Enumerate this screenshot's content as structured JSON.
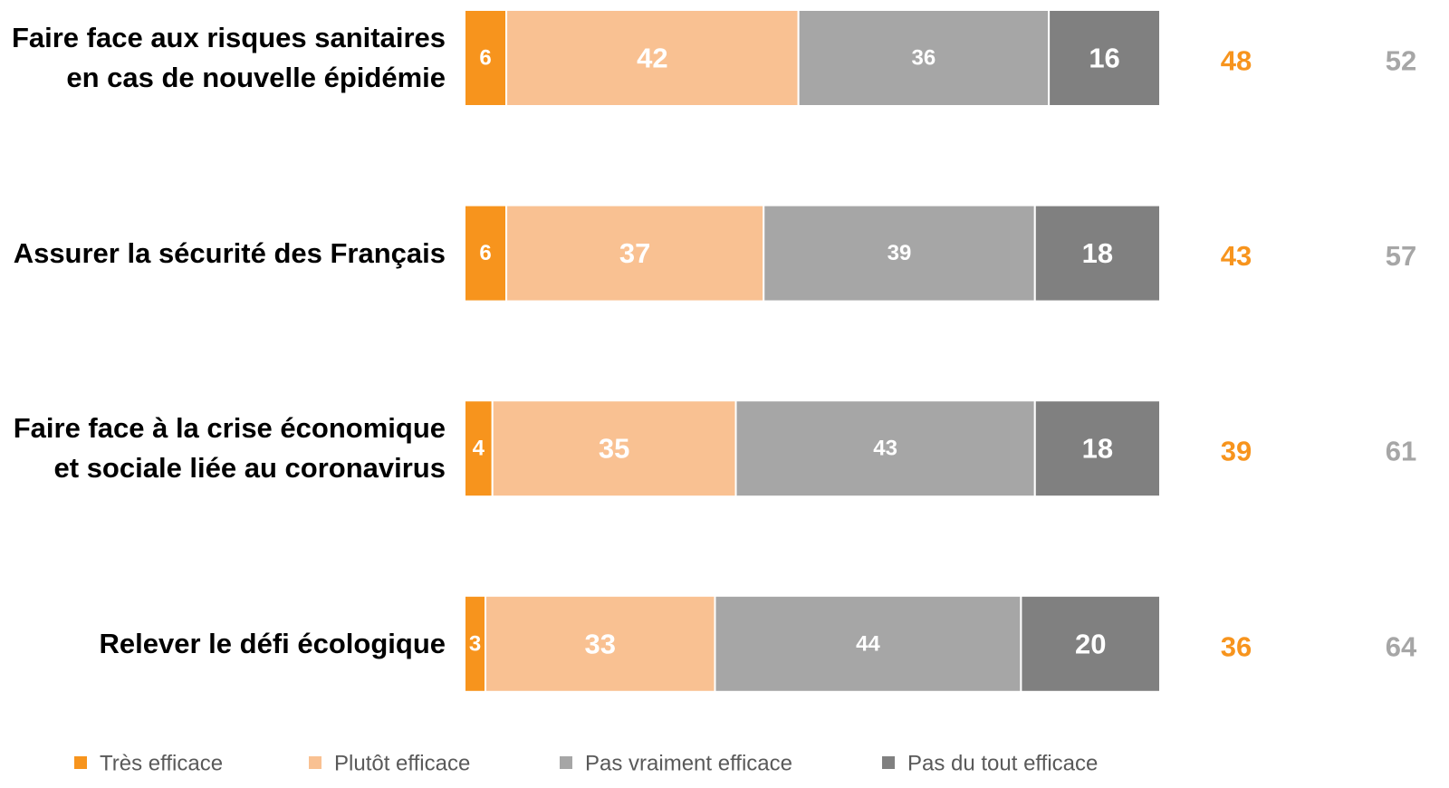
{
  "chart_data": {
    "type": "stacked_bar_horizontal",
    "categories": [
      "Faire face aux risques sanitaires\nen cas de nouvelle épidémie",
      "Assurer la sécurité des Français",
      "Faire face à la crise économique\net sociale liée au coronavirus",
      "Relever le défi écologique"
    ],
    "series": [
      {
        "name": "Très efficace",
        "color": "#f7941d",
        "values": [
          6,
          6,
          4,
          3
        ]
      },
      {
        "name": "Plutôt efficace",
        "color": "#f9c192",
        "values": [
          42,
          37,
          35,
          33
        ]
      },
      {
        "name": "Pas vraiment efficace",
        "color": "#a6a6a6",
        "values": [
          36,
          39,
          43,
          44
        ]
      },
      {
        "name": "Pas du tout efficace",
        "color": "#808080",
        "values": [
          16,
          18,
          18,
          20
        ]
      }
    ],
    "summary_columns": [
      {
        "color": "#f7941d",
        "values": [
          48,
          43,
          39,
          36
        ]
      },
      {
        "color": "#a6a6a6",
        "values": [
          52,
          57,
          61,
          64
        ]
      }
    ],
    "xlim": [
      0,
      100
    ]
  }
}
